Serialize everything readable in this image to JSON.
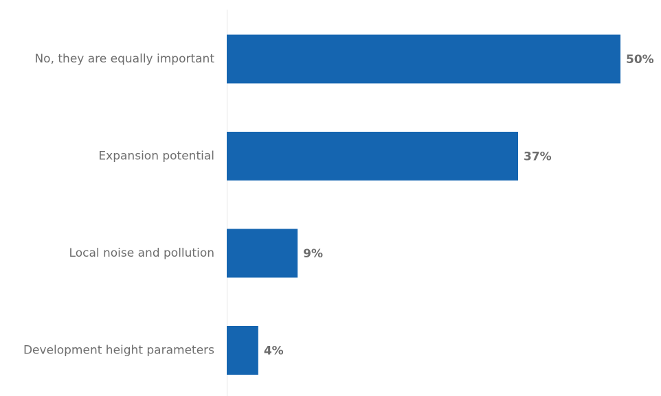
{
  "chart_data": {
    "type": "bar",
    "orientation": "horizontal",
    "title": "",
    "xlabel": "",
    "ylabel": "",
    "categories": [
      "No, they are equally important",
      "Expansion potential",
      "Local noise and pollution",
      "Development height parameters"
    ],
    "values": [
      50,
      37,
      9,
      4
    ],
    "value_labels": [
      "50%",
      "37%",
      "9%",
      "4%"
    ],
    "unit": "%",
    "xlim": [
      0,
      50
    ],
    "grid": false,
    "legend": "none",
    "bar_color": "#1565b0",
    "text_color": "#6d6d6d",
    "axis_color": "#e6e6e6"
  }
}
